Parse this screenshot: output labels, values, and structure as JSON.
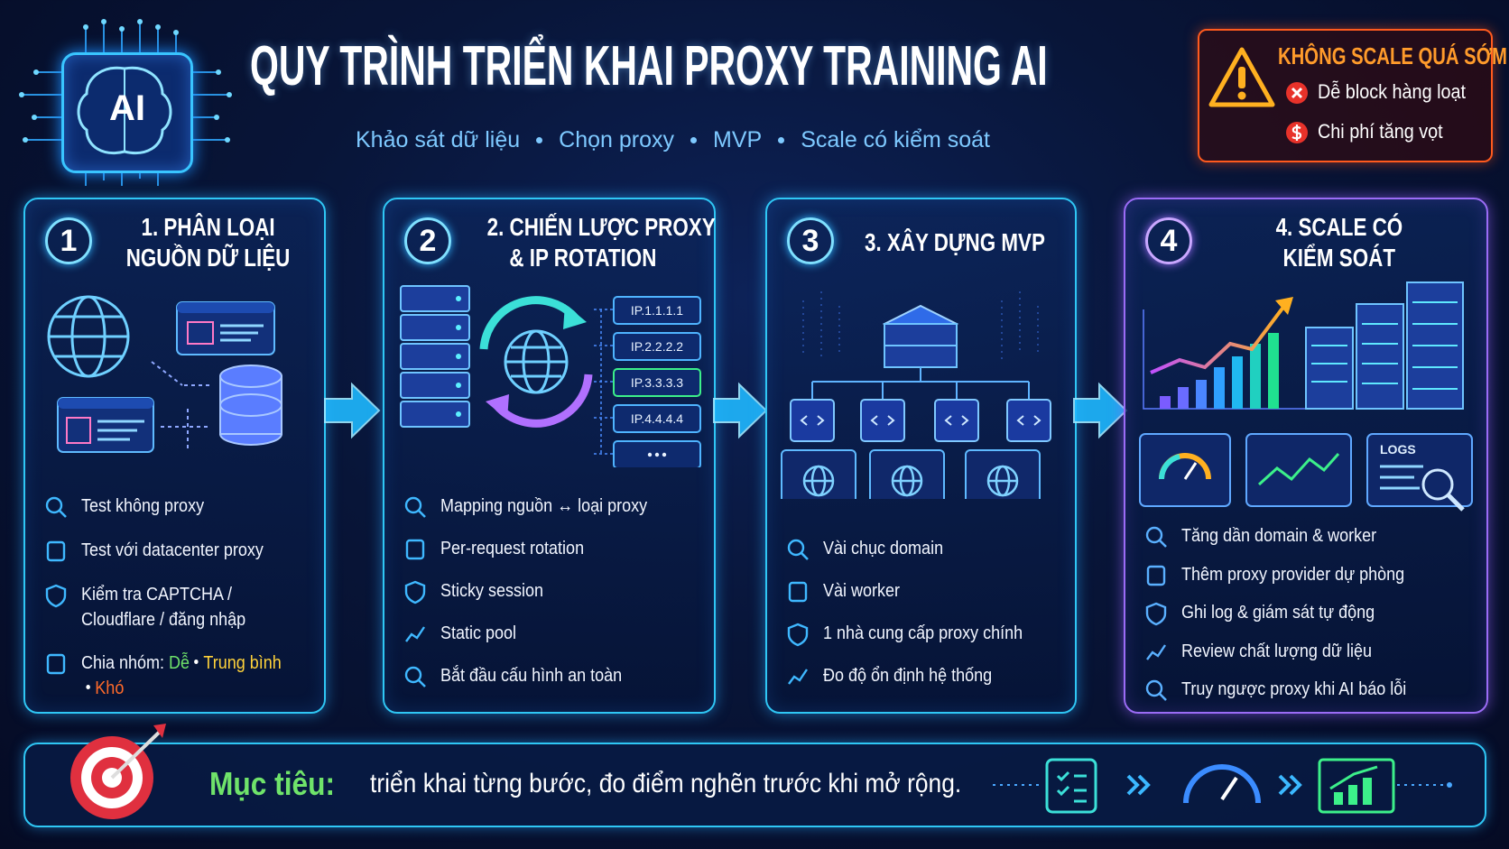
{
  "header": {
    "badge": "AI",
    "title": "QUY TRÌNH TRIỂN KHAI PROXY TRAINING AI",
    "steps": [
      "Khảo sát dữ liệu",
      "Chọn proxy",
      "MVP",
      "Scale có kiểm soát"
    ]
  },
  "warning": {
    "title": "KHÔNG SCALE QUÁ SỚM",
    "items": [
      "Dễ block hàng loạt",
      "Chi phí tăng vọt"
    ]
  },
  "cards": [
    {
      "number": "1",
      "title": [
        "1. PHÂN LOẠI",
        "NGUỒN DỮ LIỆU"
      ],
      "items": [
        "Test không proxy",
        "Test với datacenter proxy",
        "Kiểm tra CAPTCHA / Cloudflare / đăng nhập"
      ],
      "groups": {
        "label": "Chia nhóm:",
        "levels": [
          "Dễ",
          "Trung bình",
          "Khó"
        ]
      }
    },
    {
      "number": "2",
      "title": [
        "2. CHIẾN LƯỢC PROXY",
        "& IP ROTATION"
      ],
      "ips": [
        "IP.1.1.1.1",
        "IP.2.2.2.2",
        "IP.3.3.3.3",
        "IP.4.4.4.4"
      ],
      "items": [
        "Mapping nguồn ↔ loại proxy",
        "Per-request rotation",
        "Sticky session",
        "Static pool",
        "Bắt đầu cấu hình an toàn"
      ]
    },
    {
      "number": "3",
      "title": [
        "3. XÂY DỰNG MVP"
      ],
      "items": [
        "Vài chục domain",
        "Vài worker",
        "1 nhà cung cấp proxy chính",
        "Đo độ ổn định hệ thống"
      ]
    },
    {
      "number": "4",
      "title": [
        "4. SCALE CÓ",
        "KIỂM SOÁT"
      ],
      "logs": "LOGS",
      "items": [
        "Tăng dần domain & worker",
        "Thêm proxy provider dự phòng",
        "Ghi log & giám sát tự động",
        "Review chất lượng dữ liệu",
        "Truy ngược proxy khi AI báo lỗi"
      ]
    }
  ],
  "footer": {
    "label": "Mục tiêu:",
    "text": "triển khai từng bước, đo điểm nghẽn trước khi mở rộng."
  }
}
